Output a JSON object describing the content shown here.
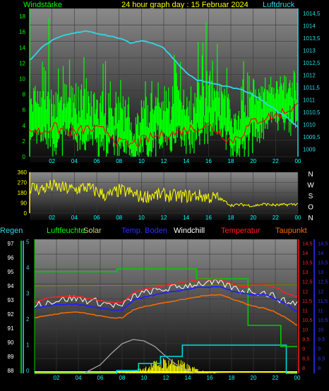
{
  "header": {
    "left_label": "Windstärke",
    "title": "24 hour graph day : 15 Februar 2024",
    "right_label": "Luftdruck"
  },
  "legend": {
    "regen": "Regen",
    "luftfeuchte": "Luftfeuchte",
    "solar": "Solar",
    "temp_boden": "Temp. Boden",
    "windchill": "Windchill",
    "temperatur": "Temperatur",
    "taupunkt": "Taupunkt"
  },
  "colors": {
    "wind": "#00ff00",
    "wind_gust": "#00ff00",
    "wind_avg": "#ff0000",
    "pressure": "#2fd7e8",
    "direction": "#ffff00",
    "regen": "#00dd00",
    "luftfeuchte": "#00cc00",
    "solar": "#ffff00",
    "temp_boden": "#2020ff",
    "windchill": "#ffffff",
    "temperatur": "#ff2020",
    "taupunkt": "#ff6a00",
    "uv": "#00e0e0"
  },
  "chart_data": [
    {
      "type": "line",
      "name": "wind-pressure",
      "x_ticks": [
        "02",
        "04",
        "06",
        "08",
        "10",
        "12",
        "14",
        "16",
        "18",
        "20",
        "22",
        "00"
      ],
      "y_left_ticks": [
        "0",
        "2",
        "4",
        "6",
        "8",
        "10",
        "12",
        "14",
        "16",
        "18"
      ],
      "y_right_ticks": [
        "1009",
        "1009,5",
        "1010",
        "1010,5",
        "1011",
        "1011,5",
        "1012",
        "1012,5",
        "1013",
        "1013,5",
        "1014",
        "1014,5"
      ],
      "ylim_left": [
        0,
        19
      ],
      "ylim_right": [
        1008.7,
        1014.7
      ],
      "series": [
        {
          "key": "pressure",
          "axis": "right",
          "x": [
            0,
            1,
            2,
            3,
            4,
            5,
            6,
            7,
            8,
            9,
            10,
            11,
            12,
            13,
            14,
            15,
            16,
            17,
            18,
            19,
            20,
            21,
            22,
            23,
            24
          ],
          "values": [
            1012.6,
            1013.1,
            1013.4,
            1013.6,
            1013.7,
            1013.8,
            1013.7,
            1013.6,
            1013.5,
            1013.3,
            1013.4,
            1013.3,
            1013.1,
            1012.6,
            1012.1,
            1011.8,
            1011.7,
            1011.6,
            1011.5,
            1011.4,
            1011.2,
            1010.9,
            1010.6,
            1010.3,
            1009.9
          ]
        },
        {
          "key": "wind_avg",
          "axis": "left",
          "x": [
            0,
            1,
            2,
            3,
            4,
            5,
            6,
            7,
            8,
            9,
            10,
            11,
            12,
            13,
            14,
            15,
            16,
            17,
            18,
            19,
            20,
            21,
            22,
            23,
            24
          ],
          "values": [
            3.5,
            3.2,
            3.8,
            3.4,
            3.0,
            3.6,
            3.4,
            3.2,
            1.8,
            1.5,
            2.0,
            2.5,
            2.8,
            3.0,
            3.5,
            3.8,
            4.0,
            3.2,
            2.0,
            3.0,
            4.5,
            5.0,
            5.2,
            6.0,
            6.5
          ]
        },
        {
          "key": "wind_base",
          "axis": "left",
          "x": [
            0,
            1,
            2,
            3,
            4,
            5,
            6,
            7,
            8,
            9,
            10,
            11,
            12,
            13,
            14,
            15,
            16,
            17,
            18,
            19,
            20,
            21,
            22,
            23,
            24
          ],
          "values": [
            5,
            5,
            5,
            6,
            5,
            5,
            4,
            5,
            4,
            3,
            4,
            5,
            5,
            6,
            5,
            6,
            7,
            6,
            4,
            5,
            6,
            7,
            8,
            8,
            9
          ]
        },
        {
          "key": "wind_gust",
          "axis": "left",
          "x": [
            0,
            1,
            2,
            3,
            4,
            5,
            6,
            7,
            8,
            9,
            10,
            11,
            12,
            13,
            14,
            15,
            16,
            17,
            18,
            19,
            20,
            21,
            22,
            23,
            24
          ],
          "values": [
            12,
            18,
            11,
            12,
            13,
            11,
            12,
            9,
            10,
            6,
            11,
            10,
            14,
            13,
            11,
            17,
            15,
            12,
            8,
            13,
            14,
            10,
            12,
            11,
            13
          ]
        }
      ]
    },
    {
      "type": "line",
      "name": "wind-direction",
      "x_ticks": [
        "02",
        "04",
        "06",
        "08",
        "10",
        "12",
        "14",
        "16",
        "18",
        "20",
        "22",
        "00"
      ],
      "y_ticks": [
        "0",
        "90",
        "180",
        "270",
        "360"
      ],
      "y_right_labels": [
        "N",
        "W",
        "S",
        "O",
        "N"
      ],
      "ylim": [
        0,
        360
      ],
      "series": [
        {
          "key": "direction",
          "x": [
            0,
            1,
            2,
            3,
            4,
            5,
            6,
            7,
            8,
            9,
            10,
            11,
            12,
            13,
            14,
            15,
            16,
            17,
            18,
            19,
            20,
            21,
            22,
            23,
            24
          ],
          "values": [
            230,
            210,
            240,
            220,
            205,
            230,
            190,
            150,
            200,
            180,
            140,
            160,
            160,
            150,
            150,
            155,
            140,
            130,
            70,
            75,
            65,
            80,
            70,
            75,
            80
          ]
        }
      ]
    },
    {
      "type": "line",
      "name": "temperature-humidity",
      "x_ticks": [
        "02",
        "04",
        "06",
        "08",
        "10",
        "12",
        "14",
        "16",
        "18",
        "20",
        "22",
        "00"
      ],
      "regen_ticks": [
        "0",
        "1",
        "2",
        "3",
        "4",
        "5"
      ],
      "humidity_ticks": [
        "88",
        "89",
        "90",
        "91",
        "92",
        "93",
        "94",
        "95",
        "96",
        "97"
      ],
      "temp_ticks": [
        "8",
        "8,5",
        "9",
        "9,5",
        "10",
        "10,5",
        "11",
        "11,5",
        "12",
        "12,5",
        "13",
        "13,5",
        "14",
        "14,5"
      ],
      "ylim_humidity": [
        87.8,
        97.3
      ],
      "ylim_temp": [
        7.7,
        14.7
      ],
      "series": [
        {
          "key": "luftfeuchte",
          "axis": "humidity",
          "step": true,
          "x": [
            0,
            7.5,
            7.5,
            14.8,
            14.8,
            19.5,
            19.5,
            22.5,
            22.5,
            24
          ],
          "values": [
            95,
            95,
            95.2,
            95.2,
            94.5,
            94.5,
            91.2,
            91.2,
            89.7,
            89.7
          ]
        },
        {
          "key": "temperatur",
          "axis": "temp",
          "x": [
            0,
            1,
            2,
            3,
            4,
            5,
            6,
            7,
            8,
            9,
            10,
            11,
            12,
            13,
            14,
            15,
            16,
            17,
            18,
            19,
            20,
            21,
            22,
            23,
            24
          ],
          "values": [
            11.4,
            11.6,
            11.7,
            11.7,
            11.7,
            11.6,
            11.5,
            11.4,
            11.4,
            11.9,
            12.1,
            12.2,
            12.3,
            12.4,
            12.5,
            12.6,
            12.6,
            12.6,
            12.4,
            12.2,
            12.3,
            12.3,
            12.2,
            11.9,
            11.7
          ]
        },
        {
          "key": "temp_boden",
          "axis": "temp",
          "x": [
            0,
            1,
            2,
            3,
            4,
            5,
            6,
            7,
            8,
            9,
            10,
            11,
            12,
            13,
            14,
            15,
            16,
            17,
            18,
            19,
            20,
            21,
            22,
            23,
            24
          ],
          "values": [
            11.1,
            11.2,
            11.3,
            11.3,
            11.3,
            11.2,
            11.1,
            11.0,
            11.0,
            11.5,
            11.7,
            11.8,
            11.9,
            12.0,
            12.1,
            12.2,
            12.2,
            12.2,
            12.0,
            11.9,
            11.8,
            11.8,
            11.6,
            11.3,
            10.9
          ]
        },
        {
          "key": "taupunkt",
          "axis": "temp",
          "x": [
            0,
            1,
            2,
            3,
            4,
            5,
            6,
            7,
            8,
            9,
            10,
            11,
            12,
            13,
            14,
            15,
            16,
            17,
            18,
            19,
            20,
            21,
            22,
            23,
            24
          ],
          "values": [
            10.6,
            10.7,
            10.8,
            10.9,
            10.9,
            10.8,
            10.7,
            10.6,
            10.6,
            11.0,
            11.2,
            11.3,
            11.4,
            11.5,
            11.6,
            11.7,
            11.8,
            11.8,
            11.6,
            11.4,
            11.2,
            11.1,
            10.9,
            10.6,
            10.2
          ]
        },
        {
          "key": "windchill",
          "axis": "temp",
          "x": [
            0,
            1,
            2,
            3,
            4,
            5,
            6,
            7,
            8,
            9,
            10,
            11,
            12,
            13,
            14,
            15,
            16,
            17,
            18,
            19,
            20,
            21,
            22,
            23,
            24
          ],
          "values": [
            11.3,
            11.4,
            11.5,
            11.6,
            11.6,
            11.5,
            11.4,
            11.3,
            11.2,
            11.7,
            11.9,
            12.0,
            12.1,
            12.2,
            12.3,
            12.4,
            12.4,
            12.4,
            12.2,
            12.0,
            12.0,
            11.9,
            11.7,
            11.4,
            11.4
          ]
        },
        {
          "key": "uv",
          "axis": "humidity",
          "step": true,
          "x": [
            0,
            7.5,
            7.5,
            9.5,
            9.5,
            11.5,
            11.5,
            13.5,
            13.5,
            23,
            23,
            24
          ],
          "values": [
            87.8,
            87.8,
            88.0,
            88.0,
            88.5,
            88.5,
            89.0,
            89.0,
            89.8,
            89.8,
            87.8,
            87.8
          ]
        },
        {
          "key": "solar",
          "axis": "humidity",
          "x": [
            4.5,
            6,
            7,
            8,
            9,
            10,
            11,
            12,
            13,
            14,
            15
          ],
          "values": [
            87.8,
            88.4,
            89.2,
            89.9,
            90.2,
            90.1,
            89.7,
            89.0,
            88.4,
            88.0,
            87.8
          ]
        }
      ]
    }
  ]
}
